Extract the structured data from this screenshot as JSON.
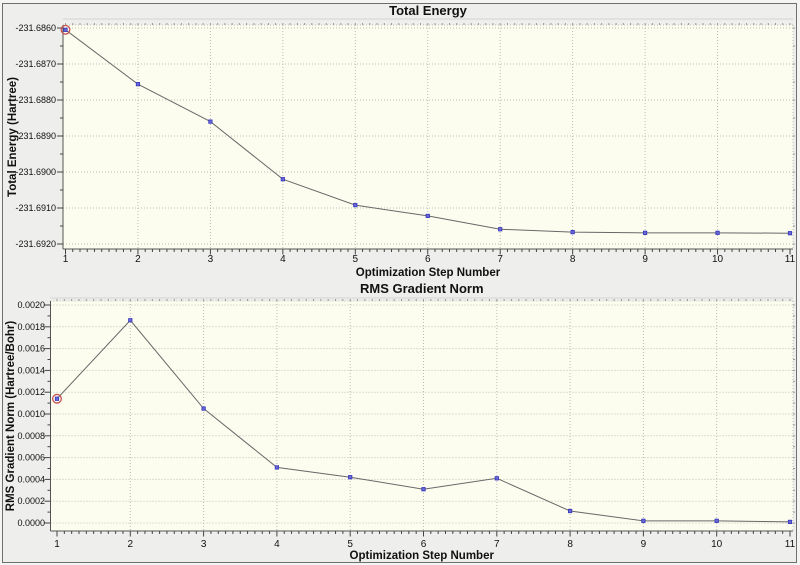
{
  "panel": {
    "name": "geometry-optimization-plots",
    "background": "#eeeeec",
    "border_color": "#6f6f6f",
    "plot_background": "#fdfdef",
    "gridline_color": "#bcbcb4",
    "axis_color": "#555555",
    "line_color": "#686868",
    "marker_fill": "#6868d8",
    "marker_stroke": "#3535bb",
    "selection_ring_color": "#c85050",
    "text_color": "#111111"
  },
  "chart_data": [
    {
      "type": "line",
      "name": "total-energy-chart",
      "title": "Total Energy",
      "xlabel": "Optimization Step Number",
      "ylabel": "Total Energy (Hartree)",
      "x": [
        1,
        2,
        3,
        4,
        5,
        6,
        7,
        8,
        9,
        10,
        11
      ],
      "values": [
        -231.68605,
        -231.68756,
        -231.6886,
        -231.6902,
        -231.69092,
        -231.69122,
        -231.69159,
        -231.69167,
        -231.69169,
        -231.69169,
        -231.6917
      ],
      "ylim": [
        -231.692,
        -231.686
      ],
      "xlim": [
        1,
        11
      ],
      "grid": "dotted",
      "legend": "none",
      "selected_step": 1,
      "xtick_labels": [
        "1",
        "2",
        "3",
        "4",
        "5",
        "6",
        "7",
        "8",
        "9",
        "10",
        "11"
      ],
      "ytick_values": [
        -231.686,
        -231.687,
        -231.688,
        -231.689,
        -231.69,
        -231.691,
        -231.692
      ],
      "ytick_labels": [
        "-231.6860",
        "-231.6870",
        "-231.6880",
        "-231.6890",
        "-231.6900",
        "-231.6910",
        "-231.6920"
      ]
    },
    {
      "type": "line",
      "name": "rms-gradient-norm-chart",
      "title": "RMS Gradient Norm",
      "xlabel": "Optimization Step Number",
      "ylabel": "RMS Gradient Norm (Hartree/Bohr)",
      "x": [
        1,
        2,
        3,
        4,
        5,
        6,
        7,
        8,
        9,
        10,
        11
      ],
      "values": [
        0.00114,
        0.00186,
        0.00105,
        0.00051,
        0.00042,
        0.00031,
        0.00041,
        0.00011,
        2e-05,
        2e-05,
        1e-05
      ],
      "ylim": [
        0.0,
        0.002
      ],
      "xlim": [
        1,
        11
      ],
      "grid": "dotted",
      "legend": "none",
      "selected_step": 1,
      "xtick_labels": [
        "1",
        "2",
        "3",
        "4",
        "5",
        "6",
        "7",
        "8",
        "9",
        "10",
        "11"
      ],
      "ytick_values": [
        0.002,
        0.0018,
        0.0016,
        0.0014,
        0.0012,
        0.001,
        0.0008,
        0.0006,
        0.0004,
        0.0002,
        0.0
      ],
      "ytick_labels": [
        "0.0020",
        "0.0018",
        "0.0016",
        "0.0014",
        "0.0012",
        "0.0010",
        "0.0008",
        "0.0006",
        "0.0004",
        "0.0002",
        "0.0000"
      ]
    }
  ]
}
